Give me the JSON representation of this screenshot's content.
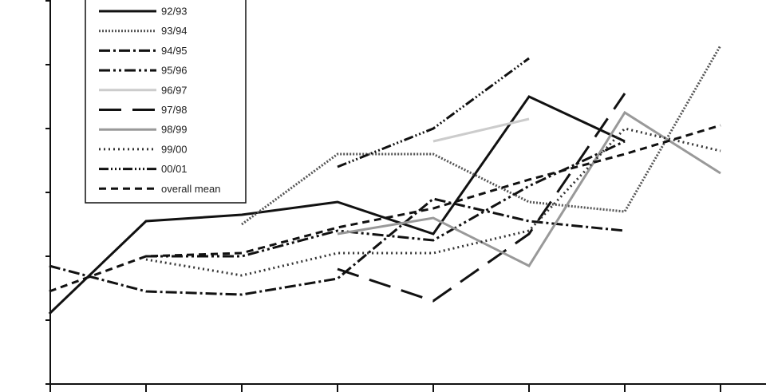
{
  "chart_data": {
    "type": "line",
    "title": "",
    "xlabel": "",
    "ylabel": "",
    "x": [
      1,
      2,
      3,
      4,
      5,
      6,
      7,
      8
    ],
    "ylim": [
      0,
      6
    ],
    "y_ticks": [
      0,
      1,
      2,
      3,
      4,
      5,
      6
    ],
    "grid": false,
    "legend": {
      "position": "top-left",
      "entries": [
        "92/93",
        "93/94",
        "94/95",
        "95/96",
        "96/97",
        "97/98",
        "98/99",
        "99/00",
        "00/01",
        "overall mean"
      ]
    },
    "series": [
      {
        "name": "92/93",
        "x": [
          0.99,
          2,
          3,
          4,
          5,
          6,
          7
        ],
        "y": [
          1.1,
          2.55,
          2.65,
          2.85,
          2.35,
          4.5,
          3.8
        ],
        "color": "#111111",
        "dash": "none",
        "width": 3
      },
      {
        "name": "93/94",
        "x": [
          3,
          4,
          5,
          6,
          7,
          8
        ],
        "y": [
          2.5,
          3.6,
          3.6,
          2.85,
          2.7,
          5.3
        ],
        "color": "#555555",
        "dash": "2 2",
        "width": 3
      },
      {
        "name": "94/95",
        "x": [
          0.99,
          2,
          3,
          4,
          5,
          6,
          7
        ],
        "y": [
          1.85,
          1.45,
          1.4,
          1.65,
          2.9,
          2.55,
          2.4
        ],
        "color": "#111111",
        "dash": "14 4 3 4",
        "width": 3
      },
      {
        "name": "95/96",
        "x": [
          2,
          3,
          4,
          5,
          6,
          7
        ],
        "y": [
          2.0,
          2.0,
          2.4,
          2.25,
          3.1,
          3.8
        ],
        "color": "#111111",
        "dash": "14 4 3 4 3 4",
        "width": 3
      },
      {
        "name": "96/97",
        "x": [
          5,
          6
        ],
        "y": [
          3.8,
          4.15
        ],
        "color": "#cccccc",
        "dash": "none",
        "width": 3
      },
      {
        "name": "97/98",
        "x": [
          4,
          5,
          6,
          7
        ],
        "y": [
          1.8,
          1.3,
          2.35,
          4.55
        ],
        "color": "#111111",
        "dash": "28 14",
        "width": 3
      },
      {
        "name": "98/99",
        "x": [
          4,
          5,
          6,
          7,
          8
        ],
        "y": [
          2.35,
          2.6,
          1.85,
          4.25,
          3.3
        ],
        "color": "#999999",
        "dash": "none",
        "width": 3
      },
      {
        "name": "99/00",
        "x": [
          2,
          3,
          4,
          5,
          6,
          7,
          8
        ],
        "y": [
          1.95,
          1.7,
          2.05,
          2.05,
          2.4,
          4.0,
          3.65
        ],
        "color": "#333333",
        "dash": "2 4",
        "width": 3
      },
      {
        "name": "00/01",
        "x": [
          4,
          5,
          6
        ],
        "y": [
          3.4,
          4.0,
          5.1
        ],
        "color": "#111111",
        "dash": "12 3 2 3 2 3 2 3",
        "width": 3
      },
      {
        "name": "overall mean",
        "x": [
          0.99,
          2,
          3,
          4,
          5,
          6,
          7,
          8
        ],
        "y": [
          1.45,
          2.0,
          2.05,
          2.45,
          2.75,
          3.2,
          3.6,
          4.05
        ],
        "color": "#111111",
        "dash": "9 6",
        "width": 3
      }
    ]
  }
}
